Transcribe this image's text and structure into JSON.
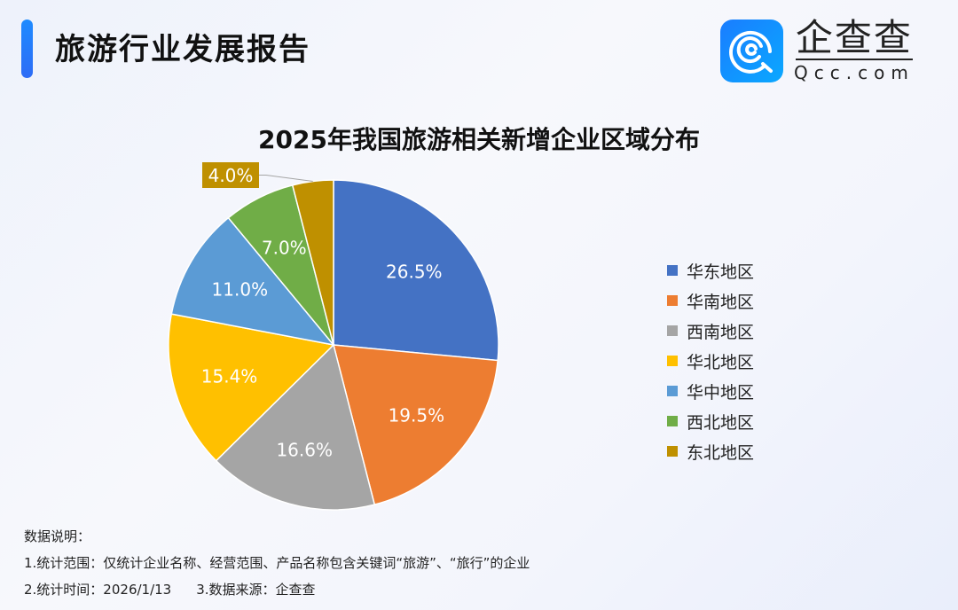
{
  "header": {
    "title": "旅游行业发展报告"
  },
  "logo": {
    "cn": "企查查",
    "en": "Qcc.com"
  },
  "chart_data": {
    "type": "pie",
    "title": "2025年我国旅游相关新增企业区域分布",
    "start": "top",
    "direction": "clockwise",
    "slices": [
      {
        "name": "华东地区",
        "value": 26.5,
        "label": "26.5%",
        "color": "#4472c4"
      },
      {
        "name": "华南地区",
        "value": 19.5,
        "label": "19.5%",
        "color": "#ed7d31"
      },
      {
        "name": "西南地区",
        "value": 16.6,
        "label": "16.6%",
        "color": "#a5a5a5"
      },
      {
        "name": "华北地区",
        "value": 15.4,
        "label": "15.4%",
        "color": "#ffc000"
      },
      {
        "name": "华中地区",
        "value": 11.0,
        "label": "11.0%",
        "color": "#5b9bd5"
      },
      {
        "name": "西北地区",
        "value": 7.0,
        "label": "7.0%",
        "color": "#70ad47"
      },
      {
        "name": "东北地区",
        "value": 4.0,
        "label": "4.0%",
        "color": "#bf9000"
      }
    ],
    "legend_position": "right"
  },
  "notes": {
    "heading": "数据说明：",
    "line1": "1.统计范围：仅统计企业名称、经营范围、产品名称包含关键词“旅游”、“旅行”的企业",
    "line2a": "2.统计时间：2026/1/13",
    "line2b": "3.数据来源：企查查"
  }
}
